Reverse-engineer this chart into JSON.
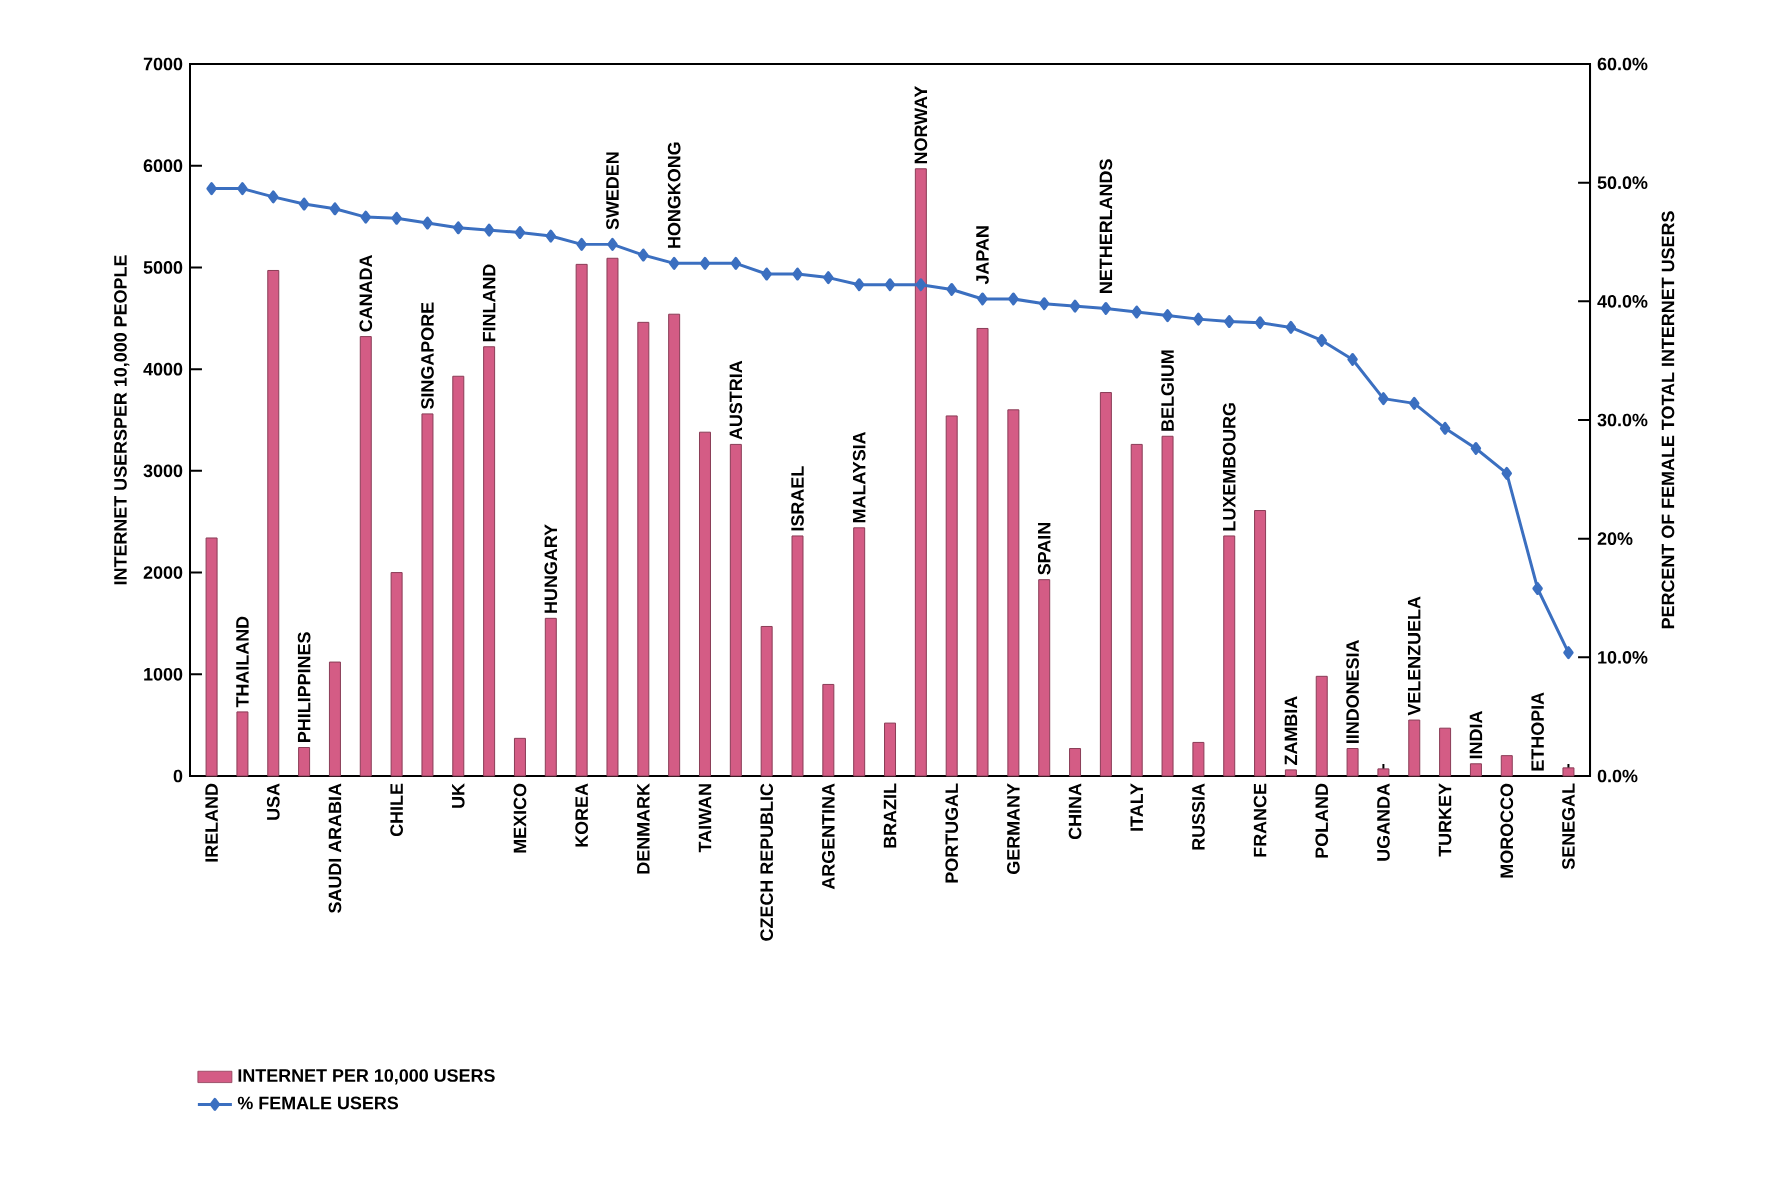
{
  "chart_data": {
    "type": "bar",
    "categories": [
      "IRELAND",
      "THAILAND",
      "USA",
      "PHILIPPINES",
      "SAUDI ARABIA",
      "CANADA",
      "CHILE",
      "SINGAPORE",
      "UK",
      "FINLAND",
      "MEXICO",
      "HUNGARY",
      "KOREA",
      "SWEDEN",
      "DENMARK",
      "HONGKONG",
      "TAIWAN",
      "AUSTRIA",
      "CZECH REPUBLIC",
      "ISRAEL",
      "ARGENTINA",
      "MALAYSIA",
      "BRAZIL",
      "NORWAY",
      "PORTUGAL",
      "JAPAN",
      "GERMANY",
      "SPAIN",
      "CHINA",
      "NETHERLANDS",
      "ITALY",
      "BELGIUM",
      "RUSSIA",
      "LUXEMBOURG",
      "FRANCE",
      "ZAMBIA",
      "POLAND",
      "IINDONESIA",
      "UGANDA",
      "VELENZUELA",
      "TURKEY",
      "INDIA",
      "MOROCCO",
      "ETHOPIA",
      "SENEGAL"
    ],
    "series": [
      {
        "name": "INTERNET PER 10,000 USERS",
        "color": "#d45c85",
        "values": [
          2340,
          630,
          4970,
          280,
          1120,
          4320,
          2000,
          3560,
          3930,
          4220,
          370,
          1550,
          5030,
          5090,
          4460,
          4540,
          3380,
          3260,
          1470,
          2360,
          900,
          2440,
          520,
          5970,
          3540,
          4400,
          3600,
          1930,
          270,
          3770,
          3260,
          3340,
          330,
          2360,
          2610,
          60,
          980,
          270,
          70,
          550,
          470,
          120,
          200,
          null,
          80
        ]
      },
      {
        "name": "% FEMALE USERS",
        "type": "line",
        "axis": "y2",
        "color": "#3b6fc0",
        "values": [
          49.5,
          49.5,
          48.8,
          48.2,
          47.8,
          47.1,
          47.0,
          46.6,
          46.2,
          46.0,
          45.8,
          45.5,
          44.8,
          44.8,
          43.9,
          43.2,
          43.2,
          43.2,
          42.3,
          42.3,
          42.0,
          41.4,
          41.4,
          41.4,
          41.0,
          40.2,
          40.2,
          39.8,
          39.6,
          39.4,
          39.1,
          38.8,
          38.5,
          38.3,
          38.2,
          37.8,
          36.7,
          35.1,
          31.8,
          31.4,
          29.3,
          27.6,
          25.5,
          15.8,
          10.4
        ]
      }
    ],
    "ylabel": "INTERNET USERSPER 10,000 PEOPLE",
    "y2label": "PERCENT OF FEMALE TOTAL INTERNET USERS",
    "ylim": [
      0,
      7000
    ],
    "yticks": [
      0,
      1000,
      2000,
      3000,
      4000,
      5000,
      6000,
      7000
    ],
    "y2lim": [
      0,
      60
    ],
    "y2ticks": [
      {
        "value": 0,
        "label": "0.0%"
      },
      {
        "value": 10,
        "label": "10.0%"
      },
      {
        "value": 20,
        "label": "20%"
      },
      {
        "value": 30,
        "label": "30.0%"
      },
      {
        "value": 40,
        "label": "40.0%"
      },
      {
        "value": 50,
        "label": "50.0%"
      },
      {
        "value": 60,
        "label": "60.0%"
      }
    ],
    "marker": "diamond",
    "legend": "bottom left"
  }
}
